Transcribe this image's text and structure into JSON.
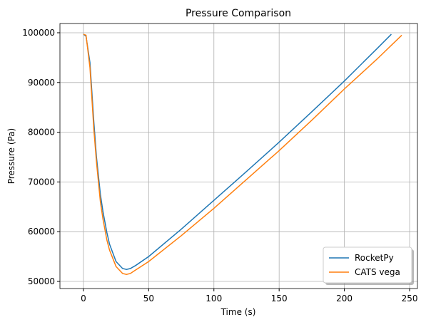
{
  "chart_data": {
    "type": "line",
    "title": "Pressure Comparison",
    "x_label": "Time (s)",
    "y_label": "Pressure (Pa)",
    "series": [
      {
        "name": "RocketPy",
        "color": "#1f77b4",
        "x": [
          0,
          2,
          5,
          8,
          10,
          13,
          15,
          18,
          20,
          25,
          30,
          33,
          36,
          40,
          50,
          75,
          100,
          125,
          150,
          175,
          200,
          225,
          236
        ],
        "values": [
          99700,
          99300,
          94000,
          82000,
          75000,
          67500,
          64000,
          59800,
          57500,
          54000,
          52600,
          52400,
          52600,
          53200,
          55000,
          60500,
          66300,
          72100,
          78000,
          84100,
          90300,
          96800,
          99700
        ]
      },
      {
        "name": "CATS vega",
        "color": "#ff7f0e",
        "x": [
          0,
          2,
          5,
          8,
          10,
          13,
          15,
          18,
          20,
          25,
          30,
          33,
          36,
          40,
          50,
          75,
          100,
          125,
          150,
          175,
          200,
          225,
          244
        ],
        "values": [
          99700,
          99500,
          93000,
          80500,
          74000,
          66000,
          62500,
          58300,
          56300,
          53000,
          51600,
          51400,
          51600,
          52300,
          54000,
          59200,
          64700,
          70500,
          76300,
          82400,
          88700,
          94700,
          99500
        ]
      }
    ],
    "xlim": [
      -18,
      256
    ],
    "xticks": [
      0,
      50,
      100,
      150,
      200,
      250
    ],
    "ylim": [
      48570,
      101860
    ],
    "yticks": [
      50000,
      60000,
      70000,
      80000,
      90000,
      100000
    ],
    "grid": true,
    "legend": "lower-right"
  }
}
